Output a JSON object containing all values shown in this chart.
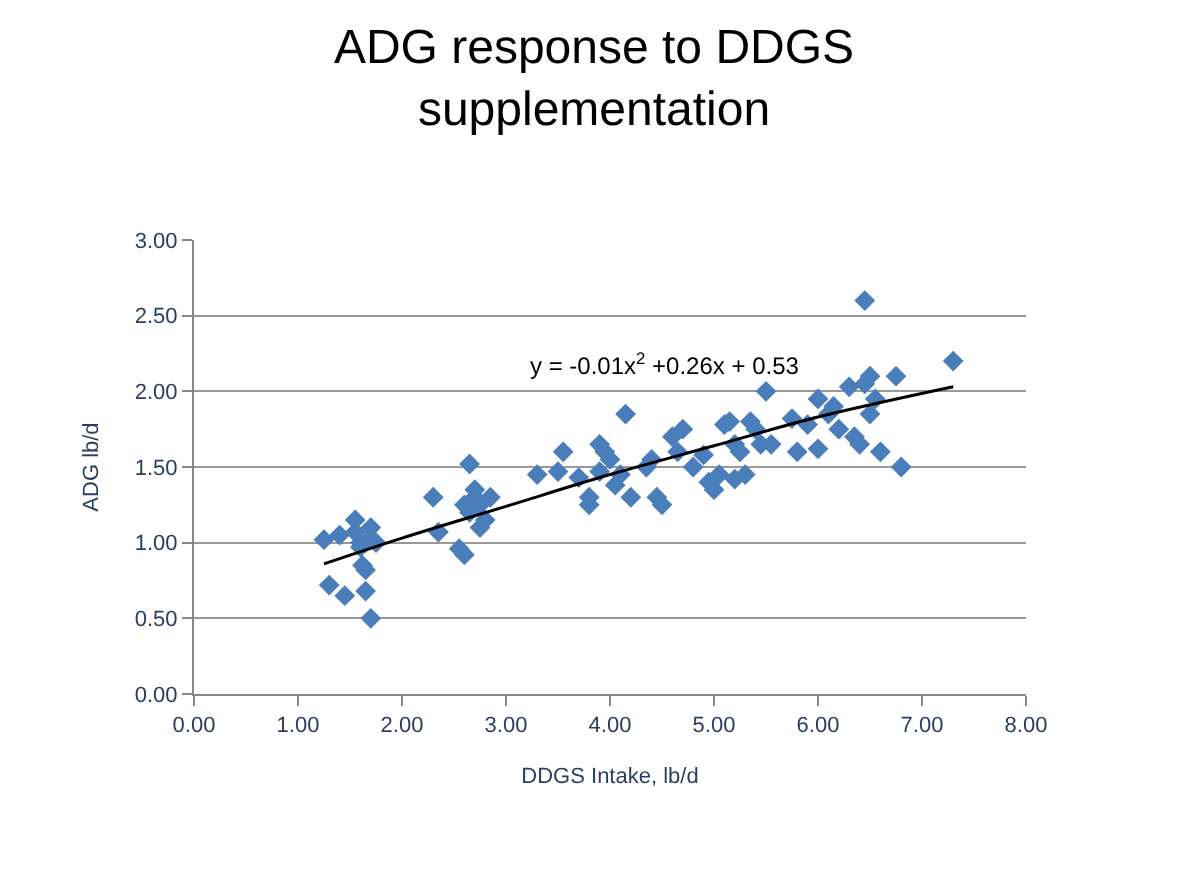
{
  "chart_data": {
    "type": "scatter",
    "title": "ADG response to DDGS supplementation",
    "xlabel": "DDGS Intake, lb/d",
    "ylabel": "ADG lb/d",
    "xlim": [
      0,
      8
    ],
    "ylim": [
      0,
      3
    ],
    "xticks": [
      {
        "value": 0,
        "label": "0.00"
      },
      {
        "value": 1,
        "label": "1.00"
      },
      {
        "value": 2,
        "label": "2.00"
      },
      {
        "value": 3,
        "label": "3.00"
      },
      {
        "value": 4,
        "label": "4.00"
      },
      {
        "value": 5,
        "label": "5.00"
      },
      {
        "value": 6,
        "label": "6.00"
      },
      {
        "value": 7,
        "label": "7.00"
      },
      {
        "value": 8,
        "label": "8.00"
      }
    ],
    "yticks": [
      {
        "value": 0,
        "label": "0.00"
      },
      {
        "value": 0.5,
        "label": "0.50"
      },
      {
        "value": 1,
        "label": "1.00"
      },
      {
        "value": 1.5,
        "label": "1.50"
      },
      {
        "value": 2,
        "label": "2.00"
      },
      {
        "value": 2.5,
        "label": "2.50"
      },
      {
        "value": 3,
        "label": "3.00"
      }
    ],
    "grid": "y",
    "marker": "diamond",
    "series": [
      {
        "color": "#4a7ebb",
        "x": [
          1.25,
          1.3,
          1.4,
          1.45,
          1.55,
          1.55,
          1.6,
          1.6,
          1.62,
          1.65,
          1.65,
          1.65,
          1.7,
          1.75,
          1.7,
          2.3,
          2.35,
          2.55,
          2.6,
          2.65,
          2.65,
          2.7,
          2.7,
          2.75,
          2.75,
          2.8,
          2.85,
          2.6,
          3.3,
          3.5,
          3.55,
          3.7,
          3.8,
          3.8,
          3.9,
          3.95,
          3.9,
          4.0,
          4.05,
          4.1,
          4.15,
          4.2,
          4.4,
          4.45,
          4.5,
          4.35,
          4.6,
          4.7,
          4.65,
          4.8,
          4.9,
          4.95,
          5.0,
          5.05,
          5.1,
          5.15,
          5.2,
          5.25,
          5.3,
          5.35,
          5.4,
          5.45,
          5.5,
          5.55,
          5.2,
          5.75,
          5.8,
          5.9,
          6.0,
          6.0,
          6.1,
          6.15,
          6.2,
          6.3,
          6.35,
          6.4,
          6.45,
          6.45,
          6.5,
          6.5,
          6.55,
          6.6,
          6.75,
          6.8,
          7.3
        ],
        "values": [
          1.02,
          0.72,
          1.05,
          0.65,
          1.15,
          1.07,
          1.0,
          0.97,
          0.85,
          1.0,
          0.82,
          0.68,
          0.5,
          1.0,
          1.1,
          1.3,
          1.07,
          0.96,
          0.92,
          1.2,
          1.52,
          1.35,
          1.3,
          1.1,
          1.25,
          1.15,
          1.3,
          1.25,
          1.45,
          1.47,
          1.6,
          1.43,
          1.3,
          1.25,
          1.65,
          1.6,
          1.47,
          1.55,
          1.38,
          1.45,
          1.85,
          1.3,
          1.55,
          1.3,
          1.25,
          1.5,
          1.7,
          1.75,
          1.6,
          1.5,
          1.58,
          1.4,
          1.35,
          1.45,
          1.78,
          1.8,
          1.65,
          1.6,
          1.45,
          1.8,
          1.75,
          1.65,
          2.0,
          1.65,
          1.42,
          1.82,
          1.6,
          1.78,
          1.95,
          1.62,
          1.85,
          1.9,
          1.75,
          2.03,
          1.7,
          1.65,
          2.05,
          2.6,
          2.1,
          1.85,
          1.95,
          1.6,
          2.1,
          1.5,
          2.2
        ]
      },
      {
        "type": "line",
        "color": "#000000",
        "marker": "none",
        "x": [
          1.25,
          2,
          3,
          4,
          5,
          6,
          7.3
        ],
        "values": [
          0.86,
          1.03,
          1.24,
          1.45,
          1.64,
          1.83,
          2.03
        ]
      }
    ],
    "annotations": [
      "y = -0.01x$^{2}$ +0.26x + 0.53"
    ]
  }
}
